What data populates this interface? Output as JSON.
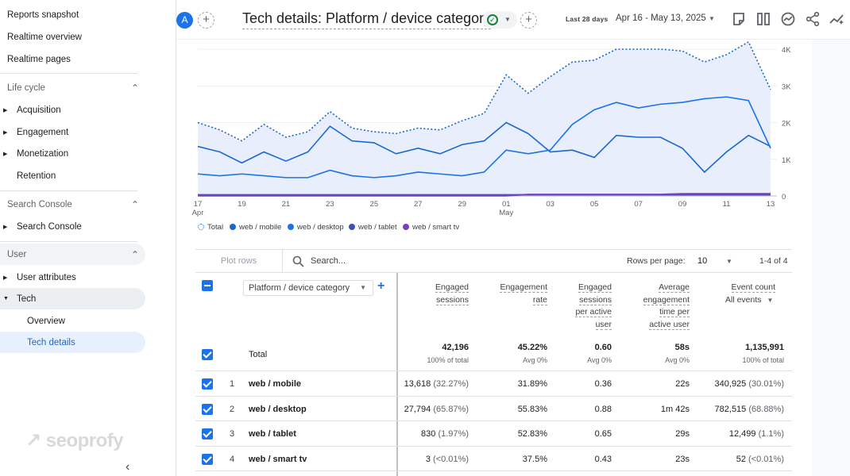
{
  "sidebar": {
    "top_items": [
      "Reports snapshot",
      "Realtime overview",
      "Realtime pages"
    ],
    "lifecycle": {
      "title": "Life cycle",
      "items": [
        "Acquisition",
        "Engagement",
        "Monetization",
        "Retention"
      ]
    },
    "search_console": {
      "title": "Search Console",
      "items": [
        "Search Console"
      ]
    },
    "user": {
      "title": "User",
      "items": [
        "User attributes",
        "Tech"
      ],
      "sub_items": [
        "Overview",
        "Tech details"
      ]
    },
    "logo_text": "seoprofy"
  },
  "header": {
    "avatar_letter": "A",
    "title": "Tech details: Platform / device category",
    "date_label": "Last 28 days",
    "date_range": "Apr 16 - May 13, 2025"
  },
  "chart_data": {
    "type": "line",
    "x": [
      "17 Apr",
      "18",
      "19",
      "20",
      "21",
      "22",
      "23",
      "24",
      "25",
      "26",
      "27",
      "28",
      "29",
      "30",
      "01 May",
      "02",
      "03",
      "04",
      "05",
      "06",
      "07",
      "08",
      "09",
      "10",
      "11",
      "12",
      "13"
    ],
    "x_tick_labels": [
      "17",
      "19",
      "21",
      "23",
      "25",
      "27",
      "29",
      "01",
      "03",
      "05",
      "07",
      "09",
      "11",
      "13"
    ],
    "x_tick_sublabels": {
      "17": "Apr",
      "01": "May"
    },
    "y_ticks": [
      "0",
      "1K",
      "2K",
      "3K",
      "4K"
    ],
    "ylim": [
      0,
      4000
    ],
    "series": [
      {
        "name": "Total",
        "style": "dotted",
        "color": "#1967d2",
        "values": [
          2000,
          1800,
          1500,
          1950,
          1600,
          1750,
          2300,
          1850,
          1750,
          1700,
          1850,
          1800,
          2050,
          2250,
          3300,
          2800,
          3250,
          3650,
          3700,
          4000,
          4000,
          4000,
          3950,
          3650,
          3850,
          4200,
          2900
        ]
      },
      {
        "name": "web / mobile",
        "style": "solid",
        "color": "#1967d2",
        "values": [
          1350,
          1200,
          900,
          1200,
          950,
          1200,
          1900,
          1500,
          1450,
          1150,
          1300,
          1150,
          1400,
          1500,
          2000,
          1700,
          1200,
          1250,
          1050,
          1650,
          1600,
          1600,
          1300,
          650,
          1200,
          1650,
          1350
        ]
      },
      {
        "name": "web / desktop",
        "style": "solid",
        "color": "#1a73e8",
        "values": [
          600,
          550,
          600,
          550,
          500,
          500,
          700,
          550,
          500,
          550,
          650,
          600,
          550,
          650,
          1250,
          1150,
          1250,
          1950,
          2350,
          2550,
          2400,
          2500,
          2550,
          2650,
          2700,
          2600,
          1300
        ]
      },
      {
        "name": "web / tablet",
        "style": "solid",
        "color": "#3f51b5",
        "values": [
          30,
          30,
          30,
          30,
          30,
          30,
          30,
          30,
          30,
          30,
          30,
          30,
          30,
          30,
          30,
          30,
          30,
          30,
          30,
          30,
          30,
          30,
          30,
          30,
          30,
          30,
          30
        ]
      },
      {
        "name": "web / smart tv",
        "style": "solid",
        "color": "#7b3fc4",
        "values": [
          5,
          5,
          5,
          5,
          5,
          5,
          5,
          5,
          5,
          5,
          5,
          5,
          5,
          5,
          5,
          40,
          40,
          40,
          40,
          40,
          40,
          40,
          60,
          60,
          60,
          60,
          60
        ]
      }
    ],
    "legend": [
      "Total",
      "web / mobile",
      "web / desktop",
      "web / tablet",
      "web / smart tv"
    ]
  },
  "table": {
    "plot_rows": "Plot rows",
    "search_placeholder": "Search...",
    "rows_per_page_label": "Rows per page:",
    "rows_per_page": "10",
    "pagination": "1-4 of 4",
    "dimension": "Platform / device category",
    "columns": [
      {
        "lines": [
          "Engaged",
          "sessions"
        ]
      },
      {
        "lines": [
          "Engagement",
          "rate"
        ]
      },
      {
        "lines": [
          "Engaged",
          "sessions",
          "per active",
          "user"
        ]
      },
      {
        "lines": [
          "Average",
          "engagement",
          "time per",
          "active user"
        ]
      },
      {
        "lines": [
          "Event count"
        ]
      }
    ],
    "event_filter": "All events",
    "total": {
      "label": "Total",
      "values": [
        "42,196",
        "45.22%",
        "0.60",
        "58s",
        "1,135,991"
      ],
      "subs": [
        "100% of total",
        "Avg 0%",
        "Avg 0%",
        "Avg 0%",
        "100% of total"
      ]
    },
    "rows": [
      {
        "idx": "1",
        "dim": "web / mobile",
        "engaged": "13,618",
        "engaged_pct": "(32.27%)",
        "rate": "31.89%",
        "per_user": "0.36",
        "avg_time": "22s",
        "events": "340,925",
        "events_pct": "(30.01%)"
      },
      {
        "idx": "2",
        "dim": "web / desktop",
        "engaged": "27,794",
        "engaged_pct": "(65.87%)",
        "rate": "55.83%",
        "per_user": "0.88",
        "avg_time": "1m 42s",
        "events": "782,515",
        "events_pct": "(68.88%)"
      },
      {
        "idx": "3",
        "dim": "web / tablet",
        "engaged": "830",
        "engaged_pct": "(1.97%)",
        "rate": "52.83%",
        "per_user": "0.65",
        "avg_time": "29s",
        "events": "12,499",
        "events_pct": "(1.1%)"
      },
      {
        "idx": "4",
        "dim": "web / smart tv",
        "engaged": "3",
        "engaged_pct": "(<0.01%)",
        "rate": "37.5%",
        "per_user": "0.43",
        "avg_time": "23s",
        "events": "52",
        "events_pct": "(<0.01%)"
      }
    ]
  }
}
